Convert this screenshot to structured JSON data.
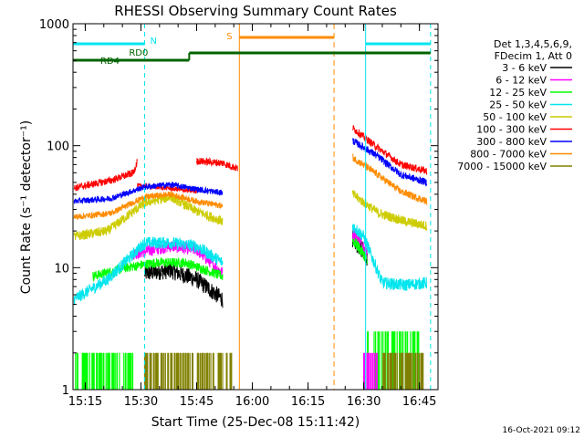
{
  "chart_data": {
    "type": "line",
    "title": "RHESSI Observing Summary Count Rates",
    "xlabel": "Start Time (25-Dec-08 15:11:42)",
    "ylabel": "Count Rate (s⁻¹ detector⁻¹)",
    "ylog": true,
    "ylim": [
      1,
      1000
    ],
    "xlim": [
      "15:11:42",
      "16:50:00"
    ],
    "x_ticks": [
      "15:15",
      "15:30",
      "15:45",
      "16:00",
      "16:15",
      "16:30",
      "16:45"
    ],
    "y_ticks": [
      "1",
      "10",
      "100",
      "1000"
    ],
    "legend": {
      "position": "top-right",
      "header": [
        "Det 1,3,4,5,6,9,",
        "FDecim 1, Att 0"
      ]
    },
    "colors": {
      "axis": "#000000",
      "night": "#00e5ee",
      "saa": "#ff8c00",
      "decim": "#006400"
    },
    "timestamp": "16-Oct-2021 09:12",
    "annotations": {
      "night_label": "N",
      "saa_label": "S",
      "rd0_label": "RD0",
      "rd4_label": "RD4",
      "night_intervals": [
        [
          "15:11:42",
          "15:31:00"
        ],
        [
          "16:30:30",
          "16:48:00"
        ]
      ],
      "saa_interval": [
        "15:56:30",
        "16:22:00"
      ],
      "rd4_intervals": [
        [
          "15:11:42",
          "15:43:00"
        ]
      ],
      "rd0_intervals": [
        [
          "15:43:00",
          "16:48:00"
        ]
      ]
    },
    "series": [
      {
        "name": "3 - 6 keV",
        "color": "#000000",
        "segments": [
          {
            "t": [
              "15:31",
              "15:38",
              "15:45",
              "15:52"
            ],
            "v": [
              9,
              9.5,
              8,
              5.5
            ],
            "noise": 0.07,
            "pre": 5.5
          },
          {
            "t": [
              "16:27",
              "16:30",
              "16:31"
            ],
            "v": [
              17,
              14,
              12
            ],
            "noise": 0.08
          }
        ]
      },
      {
        "name": "6 - 12 keV",
        "color": "#ff00ff",
        "segments": [
          {
            "t": [
              "15:28",
              "15:38",
              "15:45",
              "15:52"
            ],
            "v": [
              13,
              15,
              14,
              9
            ],
            "noise": 0.05
          },
          {
            "t": [
              "16:27",
              "16:30",
              "16:31"
            ],
            "v": [
              19,
              15,
              13
            ],
            "noise": 0.07
          }
        ]
      },
      {
        "name": "12 - 25 keV",
        "color": "#00ff00",
        "segments": [
          {
            "t": [
              "15:17",
              "15:26",
              "15:34",
              "15:42",
              "15:52"
            ],
            "v": [
              8.5,
              10,
              11,
              11,
              8.5
            ],
            "noise": 0.04
          },
          {
            "t": [
              "16:27",
              "16:30",
              "16:31"
            ],
            "v": [
              17,
              13,
              11
            ],
            "noise": 0.05
          }
        ]
      },
      {
        "name": "25 - 50 keV",
        "color": "#00e5ee",
        "segments": [
          {
            "t": [
              "15:12",
              "15:21",
              "15:31",
              "15:38",
              "15:45",
              "15:52"
            ],
            "v": [
              5.5,
              8,
              16,
              16,
              15,
              11
            ],
            "noise": 0.05
          },
          {
            "t": [
              "16:27",
              "16:30",
              "16:35",
              "16:41",
              "16:47"
            ],
            "v": [
              22,
              18,
              7.5,
              7.2,
              7.5
            ],
            "noise": 0.05
          }
        ]
      },
      {
        "name": "50 - 100 keV",
        "color": "#cccc00",
        "segments": [
          {
            "t": [
              "15:12",
              "15:21",
              "15:31",
              "15:38",
              "15:45",
              "15:52"
            ],
            "v": [
              18,
              20,
              34,
              38,
              29,
              24
            ],
            "noise": 0.04
          },
          {
            "t": [
              "16:27",
              "16:34",
              "16:41",
              "16:47"
            ],
            "v": [
              40,
              28,
              24,
              22
            ],
            "noise": 0.04
          }
        ]
      },
      {
        "name": "100 - 300 keV",
        "color": "#ff0000",
        "segments": [
          {
            "t": [
              "15:12",
              "15:22",
              "15:28",
              "15:29"
            ],
            "v": [
              45,
              52,
              60,
              75
            ],
            "noise": 0.03
          },
          {
            "t": [
              "15:29",
              "15:37",
              "15:45"
            ],
            "v": [
              47,
              45,
              42
            ],
            "noise": 0.02
          },
          {
            "t": [
              "15:45",
              "15:52",
              "15:56"
            ],
            "v": [
              75,
              72,
              65
            ],
            "noise": 0.03
          },
          {
            "t": [
              "16:27",
              "16:33",
              "16:40",
              "16:47"
            ],
            "v": [
              140,
              100,
              70,
              62
            ],
            "noise": 0.03
          }
        ]
      },
      {
        "name": "300 - 800 keV",
        "color": "#0000ff",
        "segments": [
          {
            "t": [
              "15:12",
              "15:22",
              "15:31",
              "15:38",
              "15:45",
              "15:52"
            ],
            "v": [
              35,
              37,
              46,
              48,
              44,
              41
            ],
            "noise": 0.025
          },
          {
            "t": [
              "16:27",
              "16:33",
              "16:40",
              "16:47"
            ],
            "v": [
              110,
              85,
              58,
              50
            ],
            "noise": 0.03
          }
        ]
      },
      {
        "name": "800 - 7000 keV",
        "color": "#ff8c00",
        "segments": [
          {
            "t": [
              "15:12",
              "15:22",
              "15:31",
              "15:38",
              "15:45",
              "15:52"
            ],
            "v": [
              26,
              28,
              38,
              40,
              35,
              32
            ],
            "noise": 0.025
          },
          {
            "t": [
              "16:27",
              "16:33",
              "16:40",
              "16:47"
            ],
            "v": [
              80,
              60,
              42,
              35
            ],
            "noise": 0.03
          }
        ]
      },
      {
        "name": "7000 - 15000 keV",
        "color": "#808000",
        "segments": []
      }
    ]
  }
}
